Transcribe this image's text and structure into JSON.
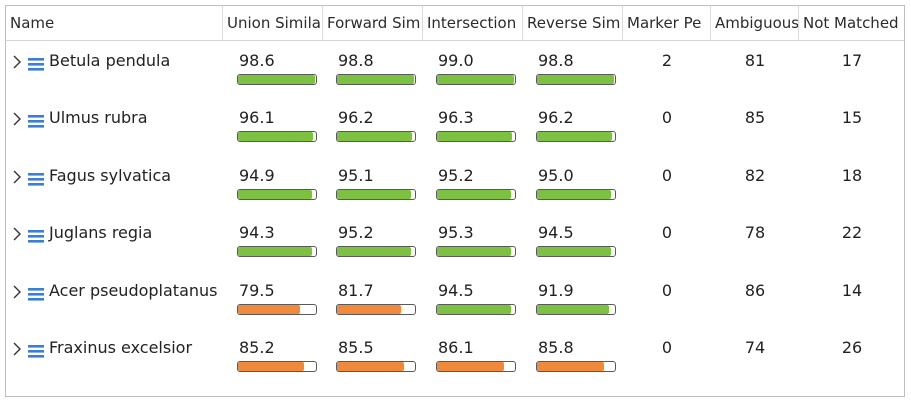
{
  "columns": [
    "Name",
    "Union Simila",
    "Forward Sim",
    "Intersection",
    "Reverse Sim",
    "Marker Pe",
    "Ambiguous",
    "Not Matched"
  ],
  "colors": {
    "high": "#7dc142",
    "low": "#ef8a3c",
    "border": "#5a5a5a",
    "icon": "#3a7fd6"
  },
  "rows": [
    {
      "name": "Betula pendula",
      "union": "98.6",
      "forward": "98.8",
      "intersection": "99.0",
      "reverse": "98.8",
      "marker": "2",
      "ambiguous": "81",
      "not_matched": "17",
      "levels": [
        0.986,
        0.988,
        0.99,
        0.988
      ],
      "tones": [
        "high",
        "high",
        "high",
        "high"
      ]
    },
    {
      "name": "Ulmus rubra",
      "union": "96.1",
      "forward": "96.2",
      "intersection": "96.3",
      "reverse": "96.2",
      "marker": "0",
      "ambiguous": "85",
      "not_matched": "15",
      "levels": [
        0.961,
        0.962,
        0.963,
        0.962
      ],
      "tones": [
        "high",
        "high",
        "high",
        "high"
      ]
    },
    {
      "name": "Fagus sylvatica",
      "union": "94.9",
      "forward": "95.1",
      "intersection": "95.2",
      "reverse": "95.0",
      "marker": "0",
      "ambiguous": "82",
      "not_matched": "18",
      "levels": [
        0.949,
        0.951,
        0.952,
        0.95
      ],
      "tones": [
        "high",
        "high",
        "high",
        "high"
      ]
    },
    {
      "name": "Juglans regia",
      "union": "94.3",
      "forward": "95.2",
      "intersection": "95.3",
      "reverse": "94.5",
      "marker": "0",
      "ambiguous": "78",
      "not_matched": "22",
      "levels": [
        0.943,
        0.952,
        0.953,
        0.945
      ],
      "tones": [
        "high",
        "high",
        "high",
        "high"
      ]
    },
    {
      "name": "Acer pseudoplatanus",
      "union": "79.5",
      "forward": "81.7",
      "intersection": "94.5",
      "reverse": "91.9",
      "marker": "0",
      "ambiguous": "86",
      "not_matched": "14",
      "levels": [
        0.795,
        0.817,
        0.945,
        0.919
      ],
      "tones": [
        "low",
        "low",
        "high",
        "high"
      ]
    },
    {
      "name": "Fraxinus excelsior",
      "union": "85.2",
      "forward": "85.5",
      "intersection": "86.1",
      "reverse": "85.8",
      "marker": "0",
      "ambiguous": "74",
      "not_matched": "26",
      "levels": [
        0.852,
        0.855,
        0.861,
        0.858
      ],
      "tones": [
        "low",
        "low",
        "low",
        "low"
      ]
    }
  ]
}
